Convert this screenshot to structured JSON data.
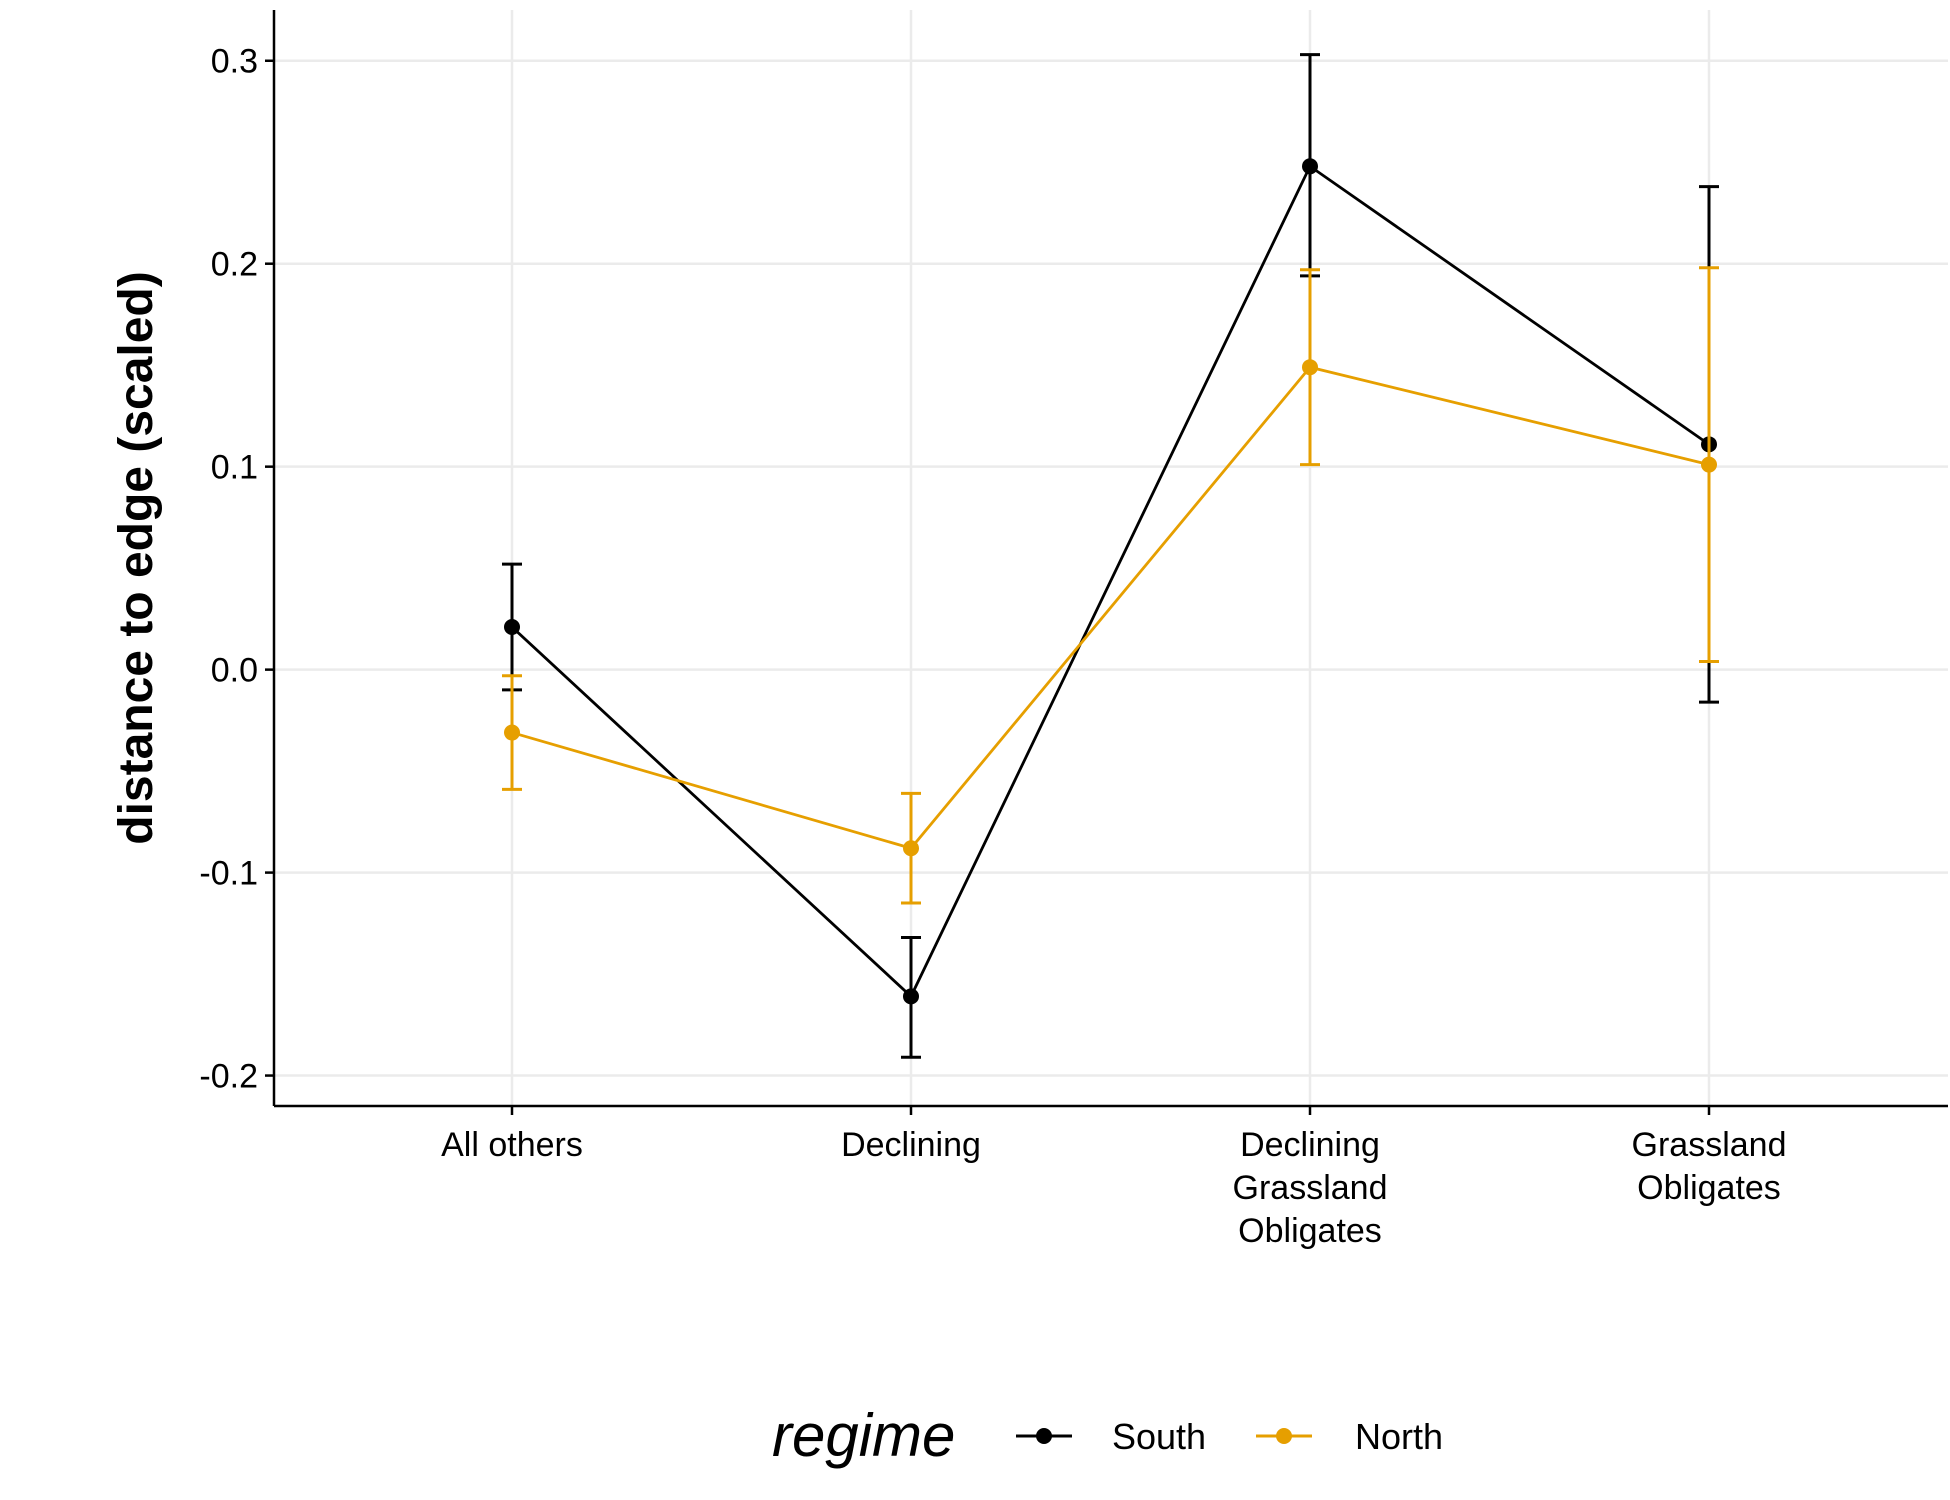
{
  "chart_data": {
    "type": "line",
    "title": "",
    "xlabel": "",
    "ylabel": "distance to edge (scaled)",
    "categories": [
      "All others",
      "Declining",
      "Declining\nGrassland\nObligates",
      "Grassland\nObligates"
    ],
    "ylim": [
      -0.215,
      0.325
    ],
    "yticks": [
      -0.2,
      -0.1,
      0.0,
      0.1,
      0.2,
      0.3
    ],
    "ytick_labels": [
      "-0.2",
      "-0.1",
      "0.0",
      "0.1",
      "0.2",
      "0.3"
    ],
    "grid": true,
    "legend": {
      "title": "regime",
      "position": "bottom"
    },
    "series": [
      {
        "name": "South",
        "color": "#000000",
        "values": [
          0.021,
          -0.161,
          0.248,
          0.111
        ],
        "lower": [
          -0.01,
          -0.191,
          0.194,
          -0.016
        ],
        "upper": [
          0.052,
          -0.132,
          0.303,
          0.238
        ]
      },
      {
        "name": "North",
        "color": "#E69F00",
        "values": [
          -0.031,
          -0.088,
          0.149,
          0.101
        ],
        "lower": [
          -0.059,
          -0.115,
          0.101,
          0.004
        ],
        "upper": [
          -0.003,
          -0.061,
          0.197,
          0.198
        ]
      }
    ]
  }
}
